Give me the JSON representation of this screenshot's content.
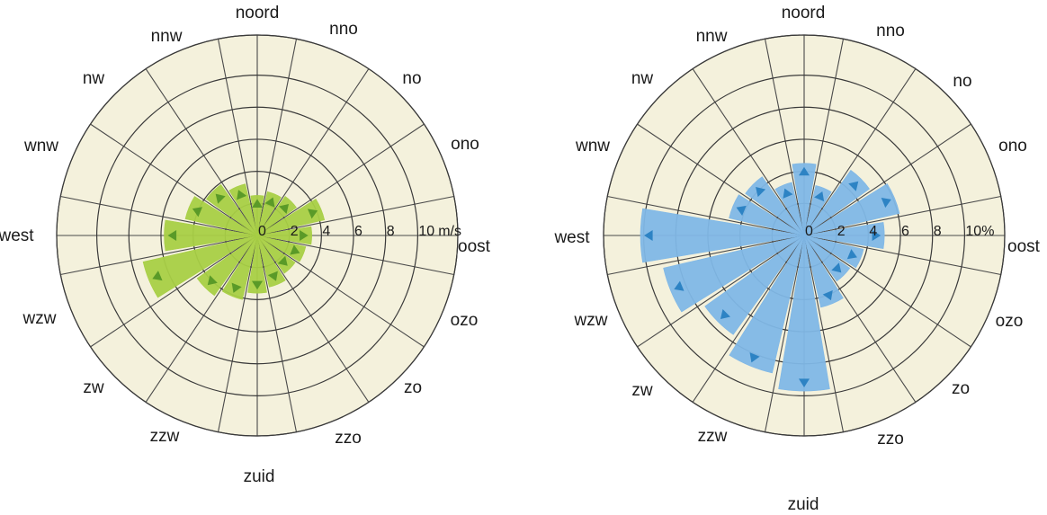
{
  "directions": [
    "noord",
    "nno",
    "no",
    "ono",
    "oost",
    "ozo",
    "zo",
    "zzo",
    "zuid",
    "zzw",
    "zw",
    "wzw",
    "west",
    "wnw",
    "nw",
    "nnw"
  ],
  "chart_data": [
    {
      "type": "radar",
      "title": "",
      "radial_unit_label": "m/s",
      "ring_ticks": [
        "0",
        "2",
        "4",
        "6",
        "8",
        "10"
      ],
      "rmax": 10,
      "series": [
        {
          "values": [
            2.5,
            2.8,
            3.0,
            4.3,
            3.4,
            3.1,
            2.9,
            3.3,
            3.6,
            4.1,
            4.6,
            7.3,
            5.8,
            4.6,
            3.9,
            3.3
          ]
        }
      ],
      "colors": {
        "fill": "#a8cf45",
        "marker": "#5a9a28"
      },
      "grid": true,
      "legend": "none"
    },
    {
      "type": "radar",
      "title": "",
      "radial_unit_label": "%",
      "ring_ticks": [
        "0",
        "2",
        "4",
        "6",
        "8",
        "10"
      ],
      "rmax": 10,
      "series": [
        {
          "values": [
            4.5,
            3.2,
            5.0,
            6.1,
            5.0,
            3.8,
            3.5,
            4.6,
            9.7,
            8.8,
            7.6,
            9.0,
            10.2,
            4.8,
            4.5,
            3.4
          ]
        }
      ],
      "colors": {
        "fill": "#7fb7e6",
        "marker": "#2d83c4"
      },
      "grid": true,
      "legend": "none"
    }
  ]
}
